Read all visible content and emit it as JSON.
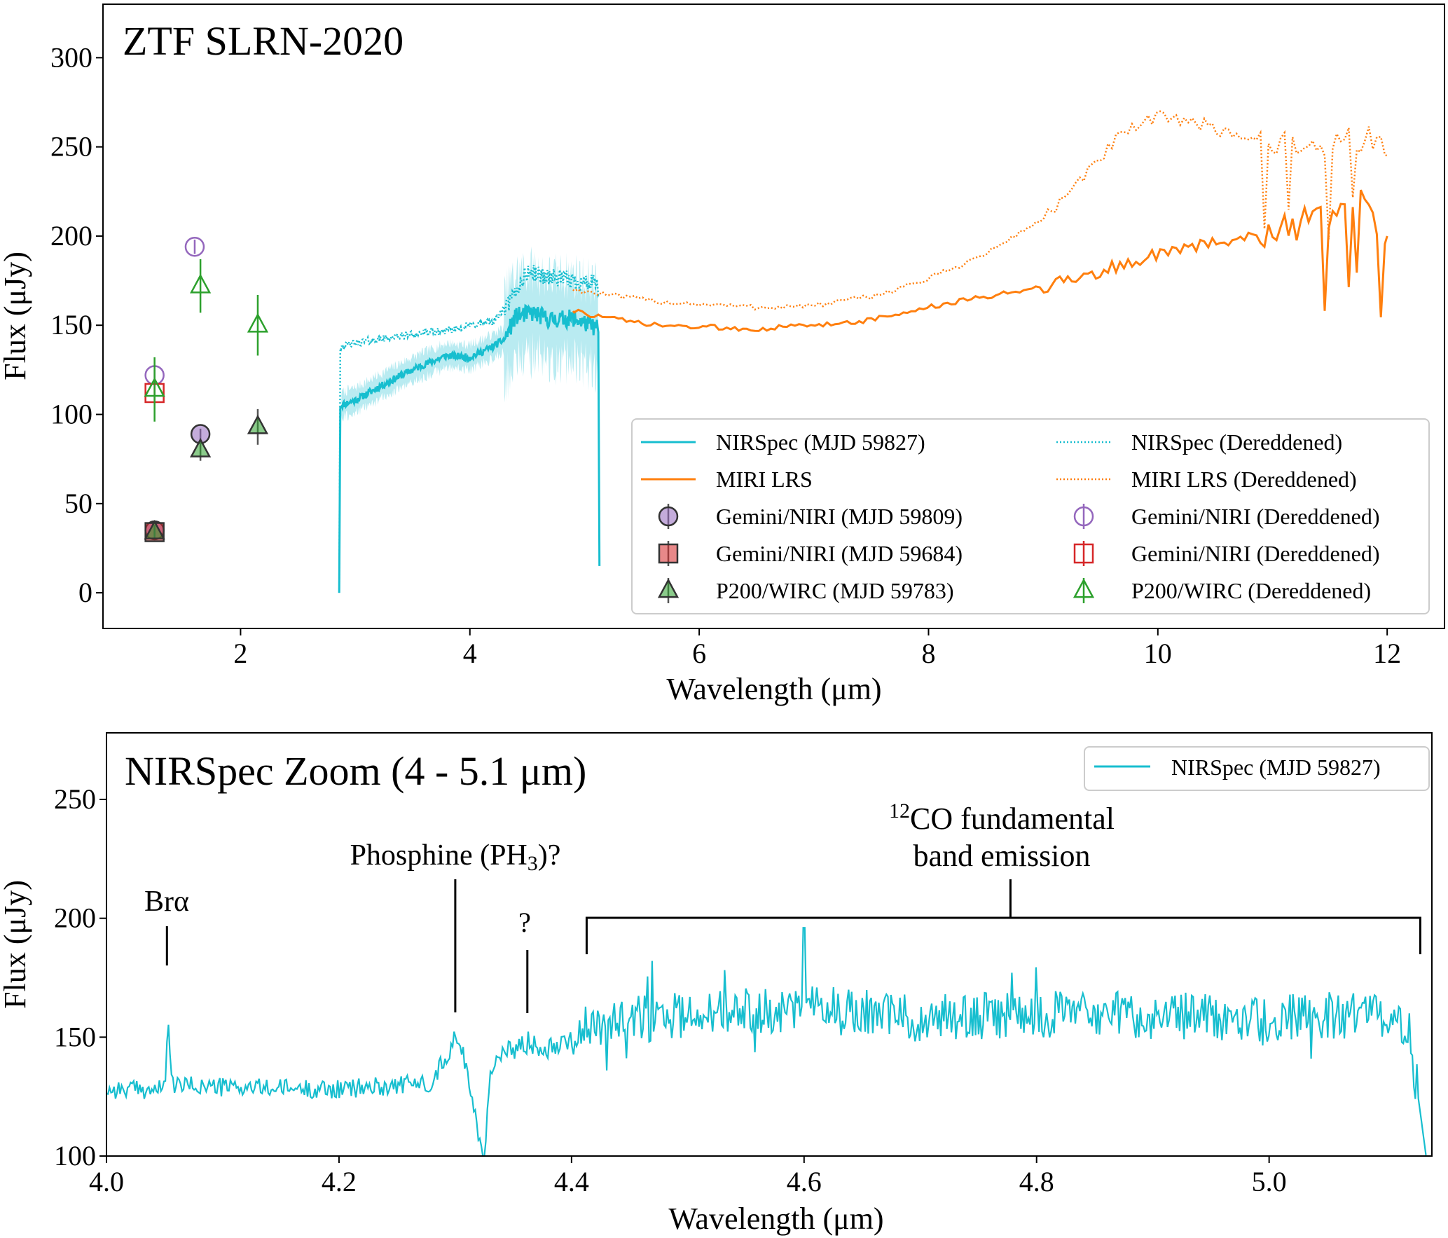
{
  "chart_data": [
    {
      "type": "line",
      "title": "ZTF SLRN-2020",
      "xlabel": "Wavelength (μm)",
      "ylabel": "Flux (μJy)",
      "xlim": [
        0.8,
        12.5
      ],
      "ylim": [
        -20,
        330
      ],
      "xticks": [
        2,
        4,
        6,
        8,
        10,
        12
      ],
      "yticks": [
        0,
        50,
        100,
        150,
        200,
        250,
        300
      ],
      "colors": {
        "nirspec": "#17becf",
        "miri": "#ff7f0e",
        "gemini": "#9467bd",
        "gemini_sq": "#d62728",
        "wirc": "#2ca02c"
      },
      "series": [
        {
          "name": "NIRSpec (MJD 59827)",
          "style": "solid",
          "color": "#17becf",
          "knots": [
            [
              2.86,
              0
            ],
            [
              2.87,
              105
            ],
            [
              3.0,
              108
            ],
            [
              3.2,
              115
            ],
            [
              3.4,
              122
            ],
            [
              3.6,
              128
            ],
            [
              3.8,
              133
            ],
            [
              4.0,
              132
            ],
            [
              4.2,
              138
            ],
            [
              4.3,
              142
            ],
            [
              4.4,
              155
            ],
            [
              4.55,
              157
            ],
            [
              4.7,
              153
            ],
            [
              4.9,
              154
            ],
            [
              5.05,
              150
            ],
            [
              5.12,
              148
            ],
            [
              5.13,
              15
            ]
          ]
        },
        {
          "name": "NIRSpec (Dereddened)",
          "style": "dotted",
          "color": "#17becf",
          "knots": [
            [
              2.86,
              0
            ],
            [
              2.87,
              138
            ],
            [
              3.0,
              140
            ],
            [
              3.2,
              142
            ],
            [
              3.5,
              145
            ],
            [
              3.8,
              147
            ],
            [
              4.0,
              150
            ],
            [
              4.2,
              152
            ],
            [
              4.35,
              163
            ],
            [
              4.5,
              180
            ],
            [
              4.7,
              177
            ],
            [
              4.9,
              175
            ],
            [
              5.1,
              173
            ],
            [
              5.13,
              168
            ]
          ]
        },
        {
          "name": "MIRI LRS",
          "style": "solid",
          "color": "#ff7f0e",
          "knots": [
            [
              4.9,
              158
            ],
            [
              5.2,
              154
            ],
            [
              5.6,
              150
            ],
            [
              6.0,
              149
            ],
            [
              6.5,
              148
            ],
            [
              7.0,
              150
            ],
            [
              7.5,
              153
            ],
            [
              8.0,
              160
            ],
            [
              8.5,
              166
            ],
            [
              9.0,
              172
            ],
            [
              9.5,
              180
            ],
            [
              10.0,
              190
            ],
            [
              10.5,
              196
            ],
            [
              11.0,
              204
            ],
            [
              11.5,
              210
            ],
            [
              11.8,
              220
            ],
            [
              12.0,
              200
            ]
          ]
        },
        {
          "name": "MIRI LRS (Dereddened)",
          "style": "dotted",
          "color": "#ff7f0e",
          "knots": [
            [
              4.9,
              170
            ],
            [
              5.3,
              166
            ],
            [
              5.7,
              163
            ],
            [
              6.0,
              162
            ],
            [
              6.5,
              160
            ],
            [
              7.0,
              161
            ],
            [
              7.5,
              166
            ],
            [
              8.0,
              176
            ],
            [
              8.5,
              190
            ],
            [
              9.0,
              210
            ],
            [
              9.3,
              228
            ],
            [
              9.6,
              252
            ],
            [
              9.9,
              264
            ],
            [
              10.1,
              268
            ],
            [
              10.4,
              262
            ],
            [
              10.8,
              255
            ],
            [
              11.0,
              252
            ],
            [
              11.5,
              250
            ],
            [
              11.8,
              255
            ],
            [
              12.0,
              245
            ]
          ]
        }
      ],
      "points": [
        {
          "name": "Gemini/NIRI (MJD 59809)",
          "marker": "circle",
          "filled": true,
          "color": "#9467bd",
          "x": [
            1.25,
            1.65
          ],
          "y": [
            35,
            89
          ],
          "yerr": [
            2,
            3
          ]
        },
        {
          "name": "Gemini/NIRI (MJD 59684)",
          "marker": "square",
          "filled": true,
          "color": "#d62728",
          "x": [
            1.25
          ],
          "y": [
            34
          ],
          "yerr": [
            2
          ]
        },
        {
          "name": "P200/WIRC (MJD 59783)",
          "marker": "triangle",
          "filled": true,
          "color": "#2ca02c",
          "x": [
            1.25,
            1.65,
            2.15
          ],
          "y": [
            34,
            80,
            93
          ],
          "yerr": [
            4,
            6,
            10
          ]
        },
        {
          "name": "Gemini/NIRI (Dereddened)",
          "marker": "circle",
          "filled": false,
          "color": "#9467bd",
          "x": [
            1.25,
            1.6
          ],
          "y": [
            122,
            194
          ],
          "yerr": [
            3,
            4
          ]
        },
        {
          "name": "Gemini/NIRI (Dereddened)",
          "marker": "square",
          "filled": false,
          "color": "#d62728",
          "x": [
            1.25
          ],
          "y": [
            112
          ],
          "yerr": [
            4
          ]
        },
        {
          "name": "P200/WIRC (Dereddened)",
          "marker": "triangle",
          "filled": false,
          "color": "#2ca02c",
          "x": [
            1.25,
            1.65,
            2.15
          ],
          "y": [
            114,
            172,
            150
          ],
          "yerr": [
            18,
            15,
            17
          ]
        }
      ],
      "legend": {
        "placement": "lower-right",
        "entries": [
          "NIRSpec (MJD 59827)",
          "NIRSpec (Dereddened)",
          "MIRI LRS",
          "MIRI LRS (Dereddened)",
          "Gemini/NIRI (MJD 59809)",
          "Gemini/NIRI (Dereddened)",
          "Gemini/NIRI (MJD 59684)",
          "Gemini/NIRI (Dereddened)",
          "P200/WIRC (MJD 59783)",
          "P200/WIRC (Dereddened)"
        ]
      }
    },
    {
      "type": "line",
      "title": "NIRSpec Zoom (4 - 5.1 μm)",
      "xlabel": "Wavelength (μm)",
      "ylabel": "Flux (μJy)",
      "xlim": [
        4.0,
        5.14
      ],
      "ylim": [
        100,
        278
      ],
      "xticks": [
        4.0,
        4.2,
        4.4,
        4.6,
        4.8,
        5.0
      ],
      "yticks": [
        100,
        150,
        200,
        250
      ],
      "series": [
        {
          "name": "NIRSpec (MJD 59827)",
          "color": "#17becf",
          "knots": [
            [
              4.0,
              128
            ],
            [
              4.05,
              128
            ],
            [
              4.053,
              158
            ],
            [
              4.056,
              130
            ],
            [
              4.1,
              129
            ],
            [
              4.2,
              128
            ],
            [
              4.28,
              131
            ],
            [
              4.3,
              150
            ],
            [
              4.31,
              138
            ],
            [
              4.325,
              95
            ],
            [
              4.33,
              138
            ],
            [
              4.36,
              148
            ],
            [
              4.38,
              146
            ],
            [
              4.42,
              155
            ],
            [
              4.5,
              160
            ],
            [
              4.6,
              162
            ],
            [
              4.7,
              158
            ],
            [
              4.8,
              160
            ],
            [
              4.9,
              159
            ],
            [
              5.0,
              158
            ],
            [
              5.1,
              160
            ],
            [
              5.12,
              155
            ],
            [
              5.135,
              100
            ]
          ]
        }
      ],
      "legend": {
        "placement": "top-right",
        "entries": [
          "NIRSpec (MJD 59827)"
        ]
      },
      "annotations": {
        "bralpha": {
          "text": "Brα",
          "x": 4.052
        },
        "phosphine": {
          "text_before": "Phosphine (PH",
          "sub": "3",
          "text_after": ")?",
          "x": 4.3
        },
        "question": {
          "text": "?",
          "x": 4.362
        },
        "co_band": {
          "sup": "12",
          "line1": "CO fundamental",
          "line2": "band emission",
          "x_start": 4.413,
          "x_end": 5.13
        }
      }
    }
  ]
}
